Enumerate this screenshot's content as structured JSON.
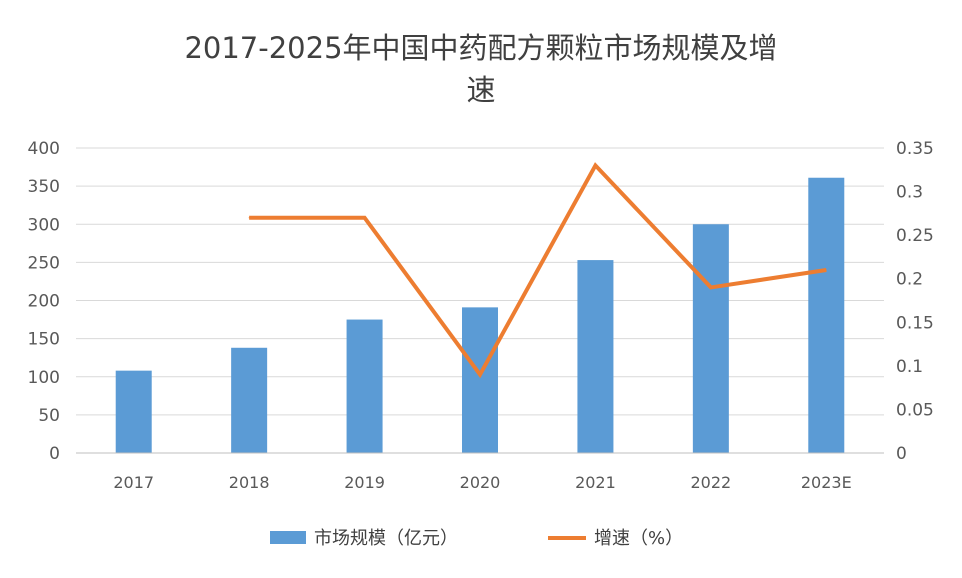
{
  "chart_data": {
    "type": "bar+line",
    "title_line1": "2017-2025年中国中药配方颗粒市场规模及增",
    "title_line2": "速",
    "categories": [
      "2017",
      "2018",
      "2019",
      "2020",
      "2021",
      "2022",
      "2023E"
    ],
    "series": [
      {
        "name": "市场规模（亿元）",
        "type": "bar",
        "axis": "left",
        "color": "#5B9BD5",
        "values": [
          108,
          138,
          175,
          191,
          253,
          300,
          361
        ]
      },
      {
        "name": "增速（%）",
        "type": "line",
        "axis": "right",
        "color": "#ED7D31",
        "values": [
          null,
          0.27,
          0.27,
          0.09,
          0.33,
          0.19,
          0.21
        ]
      }
    ],
    "y_left": {
      "min": 0,
      "max": 400,
      "step": 50,
      "tick_labels": [
        "0",
        "50",
        "100",
        "150",
        "200",
        "250",
        "300",
        "350",
        "400"
      ]
    },
    "y_right": {
      "min": 0,
      "max": 0.35,
      "step": 0.05,
      "tick_labels": [
        "0",
        "0.05",
        "0.1",
        "0.15",
        "0.2",
        "0.25",
        "0.3",
        "0.35"
      ]
    },
    "grid": true,
    "legend_position": "bottom"
  }
}
